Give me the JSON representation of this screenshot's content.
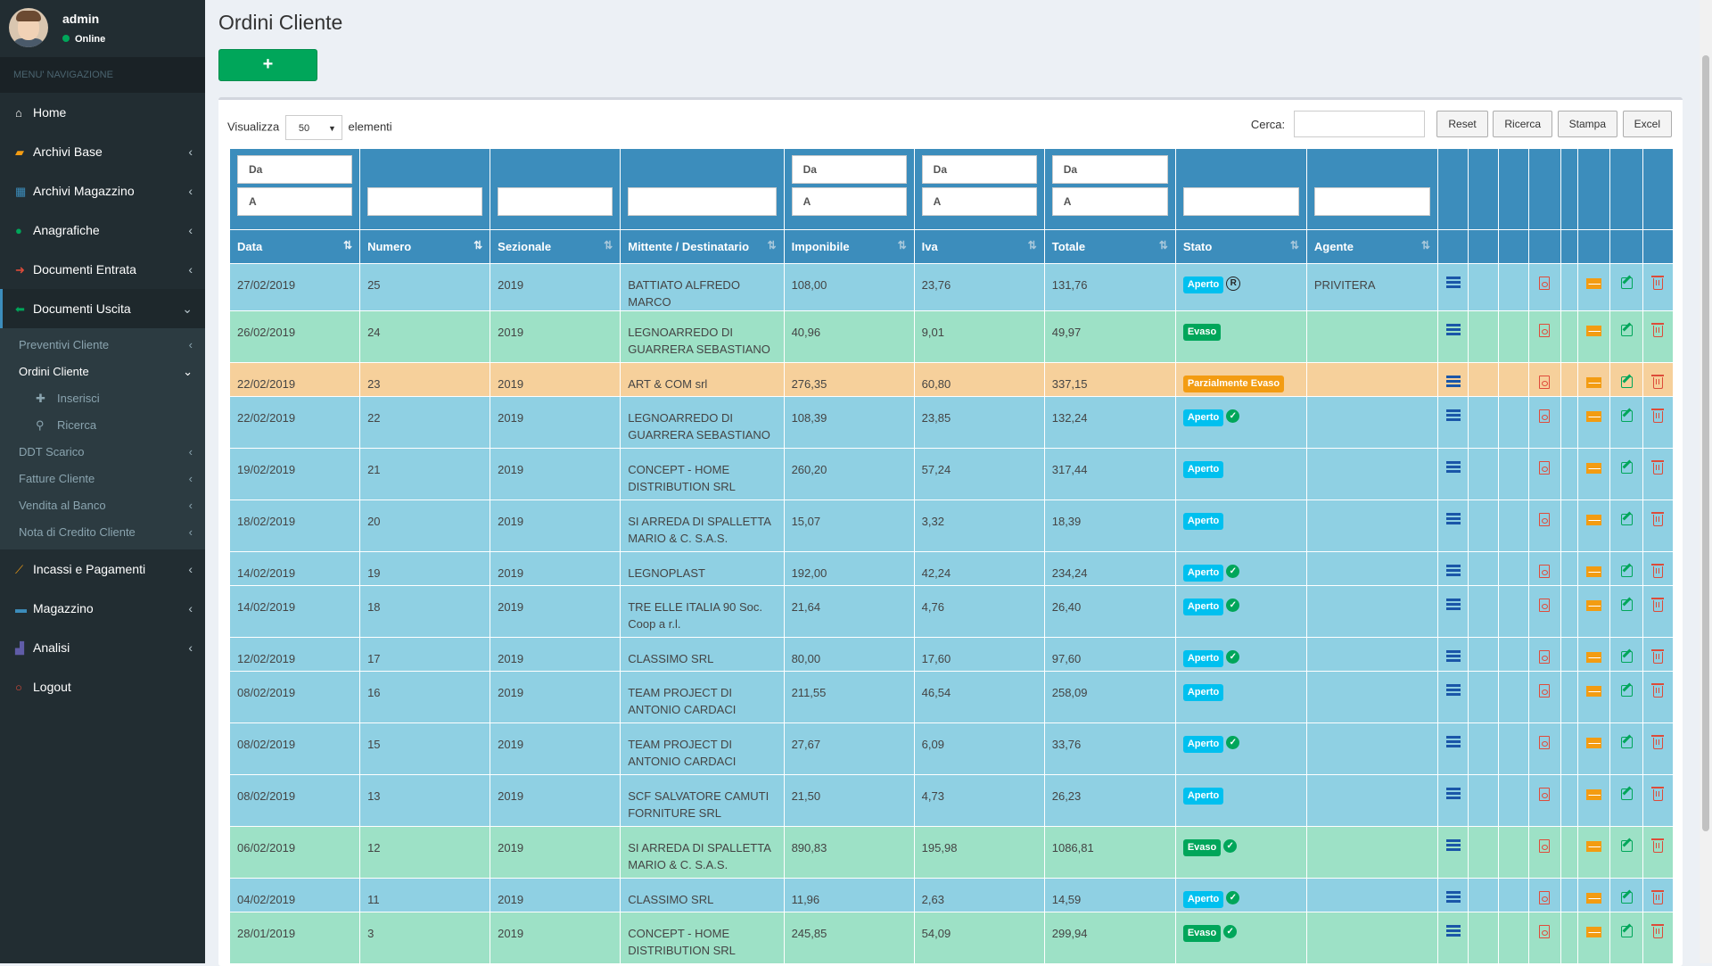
{
  "user": {
    "name": "admin",
    "status": "Online"
  },
  "sidebar": {
    "header": "MENU' NAVIGAZIONE",
    "items": [
      {
        "label": "Home",
        "icon": "home-icon"
      },
      {
        "label": "Archivi Base",
        "icon": "book-icon"
      },
      {
        "label": "Archivi Magazzino",
        "icon": "table-icon"
      },
      {
        "label": "Anagrafiche",
        "icon": "user-icon"
      },
      {
        "label": "Documenti Entrata",
        "icon": "arrow-right-icon"
      },
      {
        "label": "Documenti Uscita",
        "icon": "arrow-left-icon"
      }
    ],
    "sub_items": [
      {
        "label": "Preventivi Cliente"
      },
      {
        "label": "Ordini Cliente"
      },
      {
        "label": "DDT Scarico"
      },
      {
        "label": "Fatture Cliente"
      },
      {
        "label": "Vendita al Banco"
      },
      {
        "label": "Nota di Credito Cliente"
      }
    ],
    "subsub_items": [
      {
        "label": "Inserisci",
        "icon": "plus-icon"
      },
      {
        "label": "Ricerca",
        "icon": "search-icon"
      }
    ],
    "bottom_items": [
      {
        "label": "Incassi e Pagamenti",
        "icon": "line-chart-icon"
      },
      {
        "label": "Magazzino",
        "icon": "truck-icon"
      },
      {
        "label": "Analisi",
        "icon": "bar-chart-icon"
      },
      {
        "label": "Logout",
        "icon": "power-icon"
      }
    ]
  },
  "page": {
    "title": "Ordini Cliente",
    "add_button": "+"
  },
  "toolbar": {
    "show_label": "Visualizza",
    "page_size": "50",
    "elements_label": "elementi",
    "search_label": "Cerca:",
    "search_value": "",
    "buttons": [
      "Reset",
      "Ricerca",
      "Stampa",
      "Excel"
    ]
  },
  "filters": {
    "from_placeholder": "Da",
    "to_placeholder": "A"
  },
  "table": {
    "columns": [
      "Data",
      "Numero",
      "Sezionale",
      "Mittente / Destinatario",
      "Imponibile",
      "Iva",
      "Totale",
      "Stato",
      "Agente"
    ],
    "rows": [
      {
        "data": "27/02/2019",
        "numero": "25",
        "sezionale": "2019",
        "mittente": "BATTIATO ALFREDO MARCO",
        "imponibile": "108,00",
        "iva": "23,76",
        "totale": "131,76",
        "stato": "Aperto",
        "marker": "registered",
        "agente": "PRIVITERA"
      },
      {
        "data": "26/02/2019",
        "numero": "24",
        "sezionale": "2019",
        "mittente": "LEGNOARREDO DI GUARRERA SEBASTIANO",
        "imponibile": "40,96",
        "iva": "9,01",
        "totale": "49,97",
        "stato": "Evaso",
        "marker": "",
        "agente": ""
      },
      {
        "data": "22/02/2019",
        "numero": "23",
        "sezionale": "2019",
        "mittente": "ART & COM srl",
        "imponibile": "276,35",
        "iva": "60,80",
        "totale": "337,15",
        "stato": "Parzialmente Evaso",
        "marker": "",
        "agente": ""
      },
      {
        "data": "22/02/2019",
        "numero": "22",
        "sezionale": "2019",
        "mittente": "LEGNOARREDO DI GUARRERA SEBASTIANO",
        "imponibile": "108,39",
        "iva": "23,85",
        "totale": "132,24",
        "stato": "Aperto",
        "marker": "check",
        "agente": ""
      },
      {
        "data": "19/02/2019",
        "numero": "21",
        "sezionale": "2019",
        "mittente": "CONCEPT - HOME DISTRIBUTION SRL",
        "imponibile": "260,20",
        "iva": "57,24",
        "totale": "317,44",
        "stato": "Aperto",
        "marker": "",
        "agente": ""
      },
      {
        "data": "18/02/2019",
        "numero": "20",
        "sezionale": "2019",
        "mittente": "SI ARREDA DI SPALLETTA MARIO & C. S.A.S.",
        "imponibile": "15,07",
        "iva": "3,32",
        "totale": "18,39",
        "stato": "Aperto",
        "marker": "",
        "agente": ""
      },
      {
        "data": "14/02/2019",
        "numero": "19",
        "sezionale": "2019",
        "mittente": "LEGNOPLAST",
        "imponibile": "192,00",
        "iva": "42,24",
        "totale": "234,24",
        "stato": "Aperto",
        "marker": "check",
        "agente": ""
      },
      {
        "data": "14/02/2019",
        "numero": "18",
        "sezionale": "2019",
        "mittente": "TRE ELLE ITALIA 90 Soc. Coop a r.l.",
        "imponibile": "21,64",
        "iva": "4,76",
        "totale": "26,40",
        "stato": "Aperto",
        "marker": "check",
        "agente": ""
      },
      {
        "data": "12/02/2019",
        "numero": "17",
        "sezionale": "2019",
        "mittente": "CLASSIMO SRL",
        "imponibile": "80,00",
        "iva": "17,60",
        "totale": "97,60",
        "stato": "Aperto",
        "marker": "check",
        "agente": ""
      },
      {
        "data": "08/02/2019",
        "numero": "16",
        "sezionale": "2019",
        "mittente": "TEAM PROJECT DI ANTONIO CARDACI",
        "imponibile": "211,55",
        "iva": "46,54",
        "totale": "258,09",
        "stato": "Aperto",
        "marker": "",
        "agente": ""
      },
      {
        "data": "08/02/2019",
        "numero": "15",
        "sezionale": "2019",
        "mittente": "TEAM PROJECT DI ANTONIO CARDACI",
        "imponibile": "27,67",
        "iva": "6,09",
        "totale": "33,76",
        "stato": "Aperto",
        "marker": "check",
        "agente": ""
      },
      {
        "data": "08/02/2019",
        "numero": "13",
        "sezionale": "2019",
        "mittente": "SCF SALVATORE CAMUTI FORNITURE SRL",
        "imponibile": "21,50",
        "iva": "4,73",
        "totale": "26,23",
        "stato": "Aperto",
        "marker": "",
        "agente": ""
      },
      {
        "data": "06/02/2019",
        "numero": "12",
        "sezionale": "2019",
        "mittente": "SI ARREDA DI SPALLETTA MARIO & C. S.A.S.",
        "imponibile": "890,83",
        "iva": "195,98",
        "totale": "1086,81",
        "stato": "Evaso",
        "marker": "check",
        "agente": ""
      },
      {
        "data": "04/02/2019",
        "numero": "11",
        "sezionale": "2019",
        "mittente": "CLASSIMO SRL",
        "imponibile": "11,96",
        "iva": "2,63",
        "totale": "14,59",
        "stato": "Aperto",
        "marker": "check",
        "agente": ""
      },
      {
        "data": "28/01/2019",
        "numero": "3",
        "sezionale": "2019",
        "mittente": "CONCEPT - HOME DISTRIBUTION SRL",
        "imponibile": "245,85",
        "iva": "54,09",
        "totale": "299,94",
        "stato": "Evaso",
        "marker": "check",
        "agente": ""
      }
    ]
  },
  "colors": {
    "sidebar_bg": "#222d32",
    "header_blue": "#3c8dbc",
    "row_aperto": "#8fd0e3",
    "row_evaso": "#9de1c6",
    "row_parziale": "#f6d09b",
    "badge_aperto": "#00c0ef",
    "badge_evaso": "#00a65a",
    "badge_parziale": "#f39c12"
  }
}
